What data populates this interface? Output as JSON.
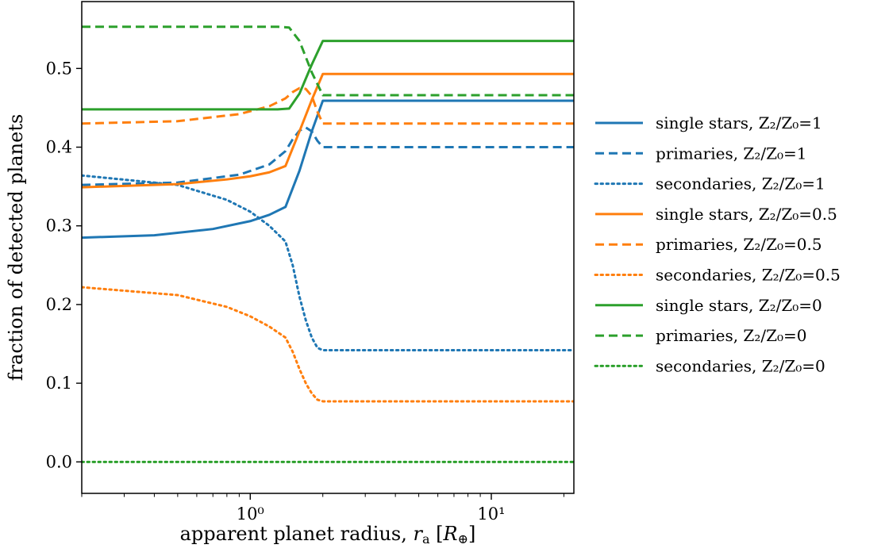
{
  "chart_data": {
    "type": "line",
    "xlabel": "apparent planet radius, r_a [R_⊕]",
    "ylabel": "fraction of detected planets",
    "xscale": "log",
    "xlim": [
      0.2,
      22
    ],
    "ylim": [
      -0.04,
      0.585
    ],
    "x_ticks": [
      {
        "value": 1,
        "label": "10⁰"
      },
      {
        "value": 10,
        "label": "10¹"
      }
    ],
    "y_ticks": [
      {
        "value": 0.0,
        "label": "0.0"
      },
      {
        "value": 0.1,
        "label": "0.1"
      },
      {
        "value": 0.2,
        "label": "0.2"
      },
      {
        "value": 0.3,
        "label": "0.3"
      },
      {
        "value": 0.4,
        "label": "0.4"
      },
      {
        "value": 0.5,
        "label": "0.5"
      }
    ],
    "grid": false,
    "legend_position": "outside-right",
    "colors": {
      "Z1": "#1f77b4",
      "Z05": "#ff7f0e",
      "Z0": "#2ca02c"
    },
    "series": [
      {
        "name": "single stars, Z₂/Z₀=1",
        "color": "#1f77b4",
        "style": "solid",
        "x": [
          0.2,
          0.4,
          0.7,
          1.0,
          1.2,
          1.4,
          1.6,
          1.8,
          2.0,
          5,
          22
        ],
        "y": [
          0.285,
          0.288,
          0.296,
          0.306,
          0.314,
          0.324,
          0.37,
          0.42,
          0.459,
          0.459,
          0.459
        ]
      },
      {
        "name": "primaries, Z₂/Z₀=1",
        "color": "#1f77b4",
        "style": "dashed",
        "x": [
          0.2,
          0.5,
          0.9,
          1.2,
          1.4,
          1.5,
          1.6,
          1.7,
          1.8,
          1.9,
          2.0,
          5,
          22
        ],
        "y": [
          0.352,
          0.355,
          0.365,
          0.378,
          0.395,
          0.41,
          0.421,
          0.425,
          0.42,
          0.408,
          0.4,
          0.4,
          0.4
        ]
      },
      {
        "name": "secondaries, Z₂/Z₀=1",
        "color": "#1f77b4",
        "style": "dotted",
        "x": [
          0.2,
          0.5,
          0.8,
          1.0,
          1.2,
          1.4,
          1.5,
          1.6,
          1.7,
          1.8,
          1.9,
          2.0,
          5,
          22
        ],
        "y": [
          0.364,
          0.352,
          0.333,
          0.318,
          0.3,
          0.28,
          0.25,
          0.21,
          0.18,
          0.158,
          0.145,
          0.142,
          0.142,
          0.142
        ]
      },
      {
        "name": "single stars, Z₂/Z₀=0.5",
        "color": "#ff7f0e",
        "style": "solid",
        "x": [
          0.2,
          0.5,
          0.8,
          1.0,
          1.2,
          1.4,
          1.6,
          1.8,
          2.0,
          5,
          22
        ],
        "y": [
          0.349,
          0.353,
          0.359,
          0.363,
          0.368,
          0.376,
          0.42,
          0.46,
          0.493,
          0.493,
          0.493
        ]
      },
      {
        "name": "primaries, Z₂/Z₀=0.5",
        "color": "#ff7f0e",
        "style": "dashed",
        "x": [
          0.2,
          0.5,
          0.9,
          1.2,
          1.4,
          1.5,
          1.6,
          1.7,
          1.8,
          1.9,
          2.0,
          5,
          22
        ],
        "y": [
          0.43,
          0.433,
          0.442,
          0.452,
          0.462,
          0.47,
          0.475,
          0.474,
          0.465,
          0.445,
          0.43,
          0.43,
          0.43
        ]
      },
      {
        "name": "secondaries, Z₂/Z₀=0.5",
        "color": "#ff7f0e",
        "style": "dotted",
        "x": [
          0.2,
          0.5,
          0.8,
          1.0,
          1.2,
          1.4,
          1.5,
          1.6,
          1.7,
          1.8,
          1.9,
          2.0,
          5,
          22
        ],
        "y": [
          0.222,
          0.212,
          0.197,
          0.185,
          0.172,
          0.158,
          0.14,
          0.118,
          0.1,
          0.087,
          0.079,
          0.077,
          0.077,
          0.077
        ]
      },
      {
        "name": "single stars, Z₂/Z₀=0",
        "color": "#2ca02c",
        "style": "solid",
        "x": [
          0.2,
          0.8,
          1.0,
          1.3,
          1.45,
          1.6,
          1.8,
          2.0,
          5,
          22
        ],
        "y": [
          0.448,
          0.448,
          0.448,
          0.448,
          0.449,
          0.468,
          0.505,
          0.535,
          0.535,
          0.535
        ]
      },
      {
        "name": "primaries, Z₂/Z₀=0",
        "color": "#2ca02c",
        "style": "dashed",
        "x": [
          0.2,
          0.8,
          1.0,
          1.3,
          1.45,
          1.6,
          1.8,
          2.0,
          5,
          22
        ],
        "y": [
          0.553,
          0.553,
          0.553,
          0.553,
          0.552,
          0.535,
          0.495,
          0.466,
          0.466,
          0.466
        ]
      },
      {
        "name": "secondaries, Z₂/Z₀=0",
        "color": "#2ca02c",
        "style": "dotted",
        "x": [
          0.2,
          22
        ],
        "y": [
          0.0,
          0.0
        ]
      }
    ]
  }
}
